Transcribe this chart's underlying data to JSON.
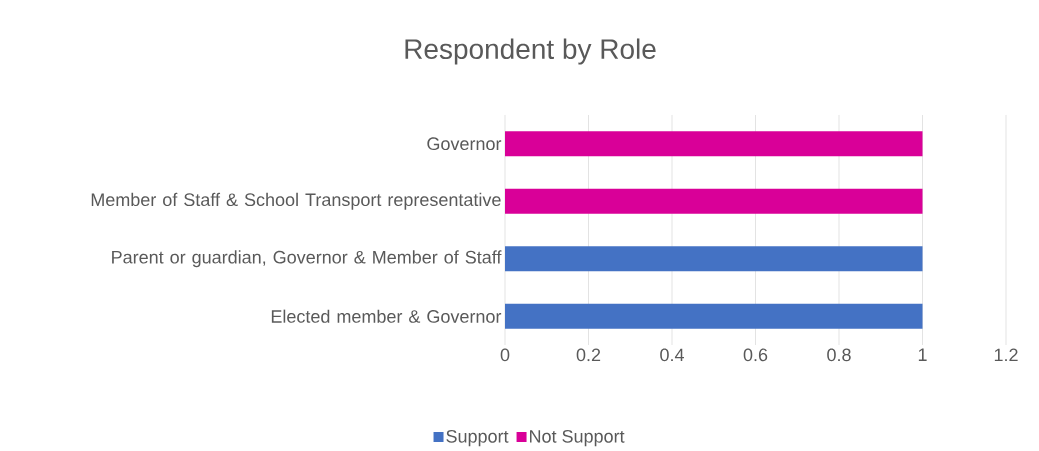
{
  "chart_data": {
    "type": "bar",
    "title": "Respondent by Role",
    "orientation": "horizontal",
    "stacked": true,
    "categories": [
      "Governor",
      "Member of Staff & School Transport representative",
      "Parent or guardian, Governor & Member of Staff",
      "Elected member & Governor"
    ],
    "series": [
      {
        "name": "Support",
        "color": "#4472c4",
        "values": [
          0,
          0,
          1,
          1
        ]
      },
      {
        "name": "Not Support",
        "color": "#d90098",
        "values": [
          1,
          1,
          0,
          0
        ]
      }
    ],
    "xlim": [
      0,
      1.2
    ],
    "xticks": [
      0,
      0.2,
      0.4,
      0.6,
      0.8,
      1,
      1.2
    ],
    "grid": "x",
    "legend": "bottom"
  }
}
